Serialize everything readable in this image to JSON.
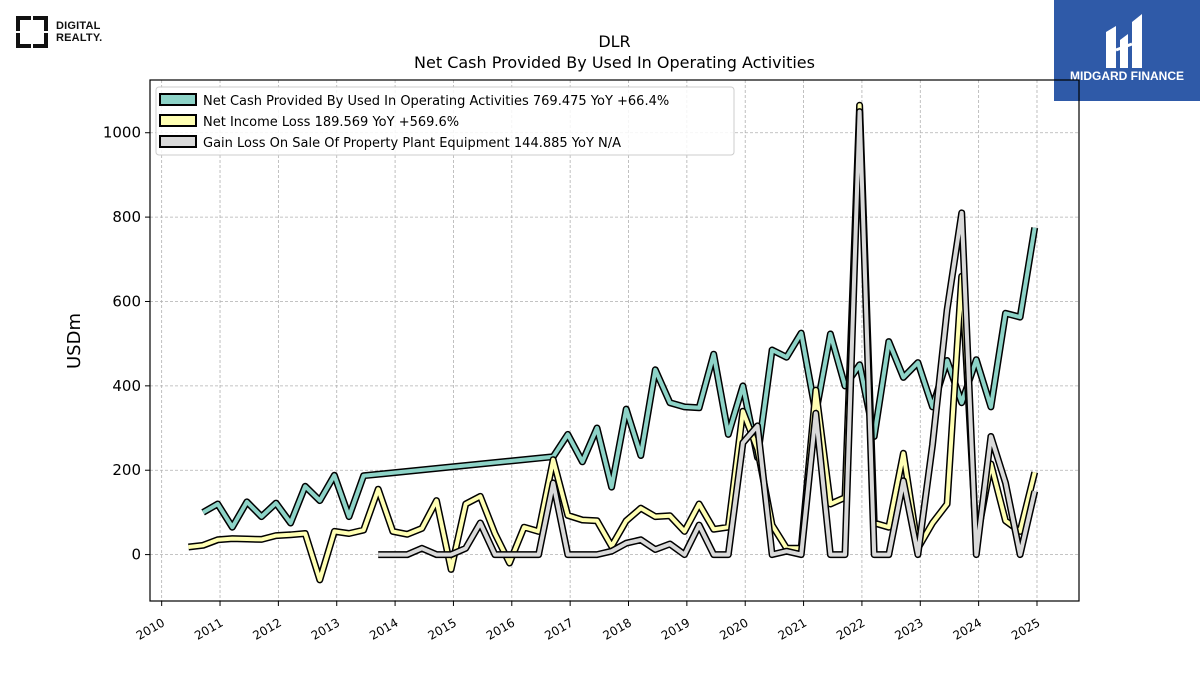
{
  "brand_left": {
    "line1": "DIGITAL",
    "line2": "REALTY."
  },
  "brand_right": {
    "name": "MIDGARD FINANCE"
  },
  "chart_data": {
    "type": "line",
    "title": "DLR",
    "subtitle": "Net Cash Provided By Used In Operating Activities",
    "ylabel": "USDm",
    "xlabel": "",
    "xlim": [
      2009.8,
      2025.72
    ],
    "ylim": [
      -110,
      1125
    ],
    "x_ticks": [
      "2010",
      "2011",
      "2012",
      "2013",
      "2014",
      "2015",
      "2016",
      "2017",
      "2018",
      "2019",
      "2020",
      "2021",
      "2022",
      "2023",
      "2024",
      "2025"
    ],
    "y_ticks": [
      0,
      200,
      400,
      600,
      800,
      1000
    ],
    "grid": true,
    "legend_position": "top-left",
    "series": [
      {
        "name": "Net Cash Provided By Used In Operating Activities",
        "legend_label": "Net Cash Provided By Used In Operating Activities  769.475 YoY +66.4%",
        "color": "#8dd3c7",
        "points": [
          [
            2010.71,
            100
          ],
          [
            2010.96,
            120
          ],
          [
            2011.21,
            65
          ],
          [
            2011.46,
            125
          ],
          [
            2011.71,
            90
          ],
          [
            2011.96,
            122
          ],
          [
            2012.21,
            75
          ],
          [
            2012.46,
            162
          ],
          [
            2012.71,
            128
          ],
          [
            2012.96,
            188
          ],
          [
            2013.21,
            90
          ],
          [
            2013.46,
            187
          ],
          [
            2016.71,
            232
          ],
          [
            2016.96,
            285
          ],
          [
            2017.21,
            220
          ],
          [
            2017.46,
            300
          ],
          [
            2017.71,
            160
          ],
          [
            2017.96,
            345
          ],
          [
            2018.21,
            235
          ],
          [
            2018.46,
            438
          ],
          [
            2018.71,
            360
          ],
          [
            2018.96,
            350
          ],
          [
            2019.21,
            348
          ],
          [
            2019.46,
            475
          ],
          [
            2019.71,
            285
          ],
          [
            2019.96,
            400
          ],
          [
            2020.21,
            230
          ],
          [
            2020.46,
            485
          ],
          [
            2020.71,
            468
          ],
          [
            2020.96,
            525
          ],
          [
            2021.21,
            335
          ],
          [
            2021.46,
            523
          ],
          [
            2021.71,
            400
          ],
          [
            2021.96,
            450
          ],
          [
            2022.21,
            280
          ],
          [
            2022.46,
            505
          ],
          [
            2022.71,
            420
          ],
          [
            2022.96,
            455
          ],
          [
            2023.21,
            350
          ],
          [
            2023.46,
            460
          ],
          [
            2023.71,
            360
          ],
          [
            2023.96,
            462
          ],
          [
            2024.21,
            350
          ],
          [
            2024.46,
            572
          ],
          [
            2024.71,
            563
          ],
          [
            2024.96,
            775
          ]
        ]
      },
      {
        "name": "Net Income Loss",
        "legend_label": "Net Income Loss  189.569 YoY +569.6%",
        "color": "#ffffb3",
        "points": [
          [
            2010.46,
            18
          ],
          [
            2010.71,
            22
          ],
          [
            2010.96,
            35
          ],
          [
            2011.21,
            38
          ],
          [
            2011.46,
            37
          ],
          [
            2011.71,
            36
          ],
          [
            2011.96,
            45
          ],
          [
            2012.21,
            47
          ],
          [
            2012.46,
            50
          ],
          [
            2012.71,
            -60
          ],
          [
            2012.96,
            55
          ],
          [
            2013.21,
            50
          ],
          [
            2013.46,
            58
          ],
          [
            2013.71,
            155
          ],
          [
            2013.96,
            55
          ],
          [
            2014.21,
            48
          ],
          [
            2014.46,
            62
          ],
          [
            2014.71,
            128
          ],
          [
            2014.96,
            -35
          ],
          [
            2015.21,
            120
          ],
          [
            2015.46,
            138
          ],
          [
            2015.71,
            50
          ],
          [
            2015.96,
            -20
          ],
          [
            2016.21,
            65
          ],
          [
            2016.46,
            55
          ],
          [
            2016.71,
            225
          ],
          [
            2016.96,
            93
          ],
          [
            2017.21,
            82
          ],
          [
            2017.46,
            80
          ],
          [
            2017.71,
            20
          ],
          [
            2017.96,
            80
          ],
          [
            2018.21,
            110
          ],
          [
            2018.46,
            90
          ],
          [
            2018.71,
            92
          ],
          [
            2018.96,
            55
          ],
          [
            2019.21,
            120
          ],
          [
            2019.46,
            60
          ],
          [
            2019.71,
            65
          ],
          [
            2019.96,
            340
          ],
          [
            2020.21,
            250
          ],
          [
            2020.46,
            70
          ],
          [
            2020.71,
            15
          ],
          [
            2020.96,
            15
          ],
          [
            2021.21,
            390
          ],
          [
            2021.46,
            120
          ],
          [
            2021.71,
            135
          ],
          [
            2021.96,
            1065
          ],
          [
            2022.21,
            75
          ],
          [
            2022.46,
            65
          ],
          [
            2022.71,
            240
          ],
          [
            2022.96,
            15
          ],
          [
            2023.21,
            75
          ],
          [
            2023.46,
            120
          ],
          [
            2023.71,
            660
          ],
          [
            2023.96,
            30
          ],
          [
            2024.21,
            215
          ],
          [
            2024.46,
            80
          ],
          [
            2024.71,
            55
          ],
          [
            2024.96,
            195
          ]
        ]
      },
      {
        "name": "Gain Loss On Sale Of Property Plant Equipment",
        "legend_label": "Gain Loss On Sale Of Property Plant Equipment  144.885 YoY N/A",
        "color": "#d9d9d9",
        "points": [
          [
            2013.71,
            0
          ],
          [
            2013.96,
            0
          ],
          [
            2014.21,
            0
          ],
          [
            2014.46,
            15
          ],
          [
            2014.71,
            0
          ],
          [
            2014.96,
            0
          ],
          [
            2015.21,
            15
          ],
          [
            2015.46,
            75
          ],
          [
            2015.71,
            0
          ],
          [
            2015.96,
            0
          ],
          [
            2016.21,
            0
          ],
          [
            2016.46,
            0
          ],
          [
            2016.71,
            170
          ],
          [
            2016.96,
            0
          ],
          [
            2017.21,
            0
          ],
          [
            2017.46,
            0
          ],
          [
            2017.71,
            8
          ],
          [
            2017.96,
            27
          ],
          [
            2018.21,
            35
          ],
          [
            2018.46,
            12
          ],
          [
            2018.71,
            25
          ],
          [
            2018.96,
            0
          ],
          [
            2019.21,
            70
          ],
          [
            2019.46,
            0
          ],
          [
            2019.71,
            0
          ],
          [
            2019.96,
            265
          ],
          [
            2020.21,
            305
          ],
          [
            2020.46,
            0
          ],
          [
            2020.71,
            8
          ],
          [
            2020.96,
            0
          ],
          [
            2021.21,
            335
          ],
          [
            2021.46,
            0
          ],
          [
            2021.71,
            0
          ],
          [
            2021.96,
            1050
          ],
          [
            2022.21,
            0
          ],
          [
            2022.46,
            0
          ],
          [
            2022.71,
            175
          ],
          [
            2022.96,
            0
          ],
          [
            2023.21,
            260
          ],
          [
            2023.46,
            580
          ],
          [
            2023.71,
            810
          ],
          [
            2023.96,
            0
          ],
          [
            2024.21,
            280
          ],
          [
            2024.46,
            170
          ],
          [
            2024.71,
            0
          ],
          [
            2024.96,
            150
          ]
        ]
      }
    ]
  }
}
